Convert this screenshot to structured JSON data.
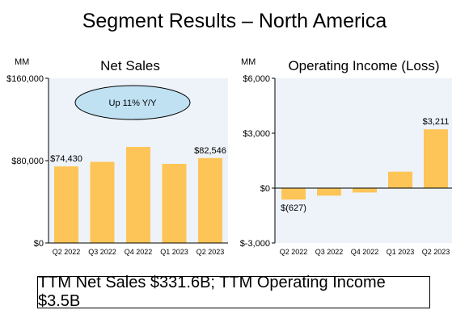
{
  "title": "Segment Results – North America",
  "footer": "TTM Net Sales $331.6B; TTM Operating Income $3.5B",
  "colors": {
    "bar": "#FDC557",
    "plot_bg": "#EEF3FA",
    "ellipse": "#BFE1F2"
  },
  "chart_data": [
    {
      "type": "bar",
      "title": "Net Sales",
      "unit_label": "MM",
      "categories": [
        "Q2 2022",
        "Q3 2022",
        "Q4 2022",
        "Q1 2023",
        "Q2 2023"
      ],
      "values": [
        74430,
        78843,
        93363,
        76881,
        82546
      ],
      "ylim": [
        0,
        160000
      ],
      "ticks": [
        0,
        80000,
        160000
      ],
      "tick_labels": [
        "$0",
        "$80,000",
        "$160,000"
      ],
      "data_labels": [
        {
          "index": 0,
          "text": "$74,430"
        },
        {
          "index": 4,
          "text": "$82,546"
        }
      ],
      "annotation": "Up 11% Y/Y"
    },
    {
      "type": "bar",
      "title": "Operating Income (Loss)",
      "unit_label": "MM",
      "categories": [
        "Q2 2022",
        "Q3 2022",
        "Q4 2022",
        "Q1 2023",
        "Q2 2023"
      ],
      "values": [
        -627,
        -412,
        -240,
        898,
        3211
      ],
      "ylim": [
        -3000,
        6000
      ],
      "ticks": [
        -3000,
        0,
        3000,
        6000
      ],
      "tick_labels": [
        "$-3,000",
        "$0",
        "$3,000",
        "$6,000"
      ],
      "data_labels": [
        {
          "index": 0,
          "text": "$(627)"
        },
        {
          "index": 4,
          "text": "$3,211"
        }
      ]
    }
  ]
}
